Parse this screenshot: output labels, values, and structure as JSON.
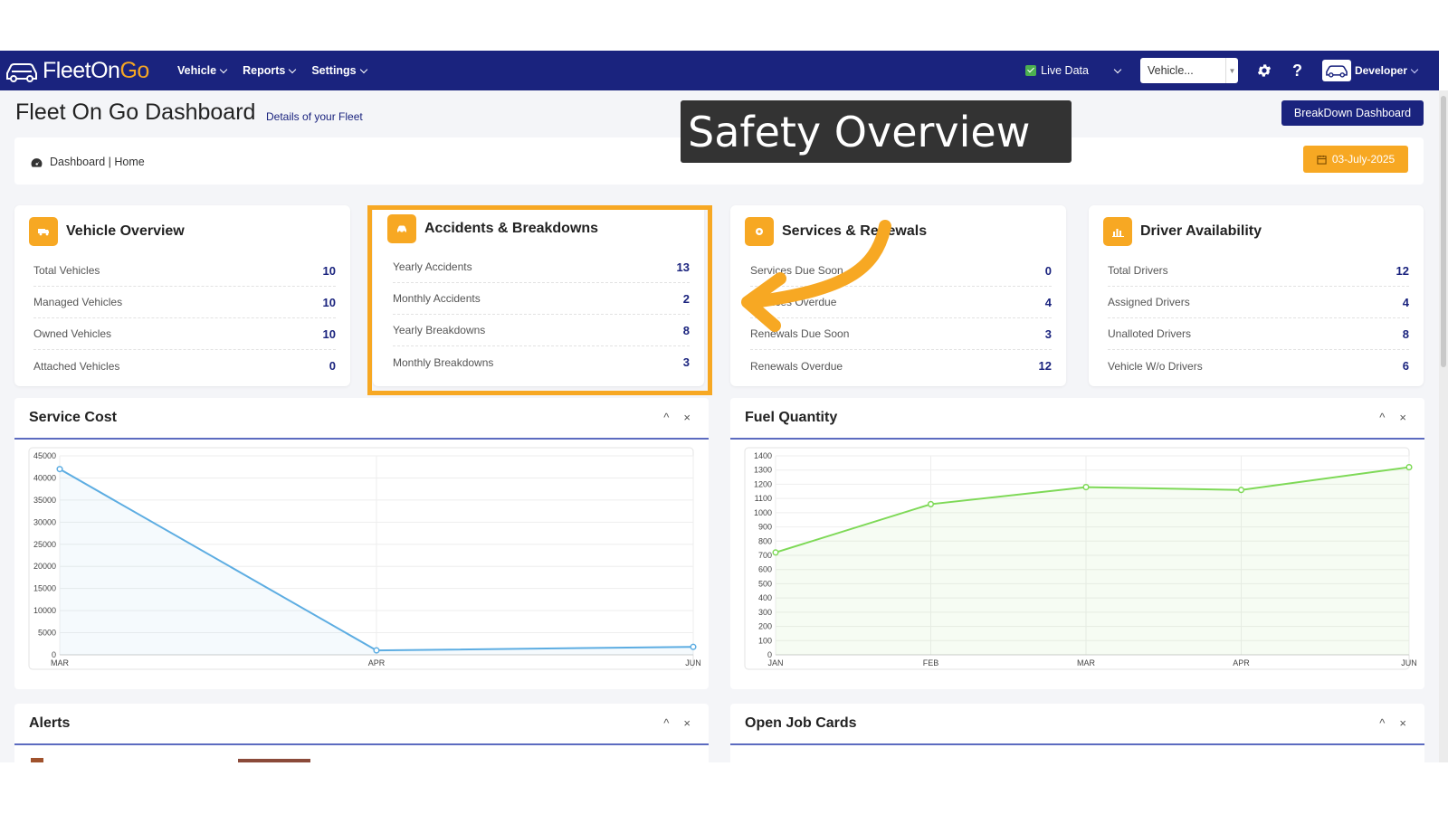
{
  "overlay": {
    "label": "Safety Overview"
  },
  "nav": {
    "logo_part1": "FleetOn",
    "logo_part2": "Go",
    "menu": [
      {
        "label": "Vehicle"
      },
      {
        "label": "Reports"
      },
      {
        "label": "Settings"
      }
    ],
    "live_data_label": "Live Data",
    "vehicle_select_value": "Vehicle...",
    "user_label": "Developer",
    "help_label": "?"
  },
  "header": {
    "title": "Fleet On Go Dashboard",
    "subtitle": "Details of your Fleet",
    "breakdown_button": "BreakDown Dashboard",
    "breadcrumb": "Dashboard | Home",
    "date": "03-July-2025"
  },
  "cards": {
    "vehicle": {
      "title": "Vehicle Overview",
      "rows": [
        {
          "label": "Total Vehicles",
          "value": "10"
        },
        {
          "label": "Managed Vehicles",
          "value": "10"
        },
        {
          "label": "Owned Vehicles",
          "value": "10"
        },
        {
          "label": "Attached Vehicles",
          "value": "0"
        }
      ]
    },
    "accidents": {
      "title": "Accidents & Breakdowns",
      "rows": [
        {
          "label": "Yearly Accidents",
          "value": "13"
        },
        {
          "label": "Monthly Accidents",
          "value": "2"
        },
        {
          "label": "Yearly Breakdowns",
          "value": "8"
        },
        {
          "label": "Monthly Breakdowns",
          "value": "3"
        }
      ]
    },
    "services": {
      "title": "Services & Renewals",
      "rows": [
        {
          "label": "Services Due Soon",
          "value": "0"
        },
        {
          "label": "Services Overdue",
          "value": "4"
        },
        {
          "label": "Renewals Due Soon",
          "value": "3"
        },
        {
          "label": "Renewals Overdue",
          "value": "12"
        }
      ]
    },
    "drivers": {
      "title": "Driver Availability",
      "rows": [
        {
          "label": "Total Drivers",
          "value": "12"
        },
        {
          "label": "Assigned Drivers",
          "value": "4"
        },
        {
          "label": "Unalloted Drivers",
          "value": "8"
        },
        {
          "label": "Vehicle W/o Drivers",
          "value": "6"
        }
      ]
    }
  },
  "panels": {
    "service_cost": {
      "title": "Service Cost"
    },
    "fuel_quantity": {
      "title": "Fuel Quantity"
    },
    "alerts": {
      "title": "Alerts"
    },
    "open_job_cards": {
      "title": "Open Job Cards"
    },
    "collapse_glyph": "^",
    "close_glyph": "×"
  },
  "colors": {
    "nav_bg": "#1a237e",
    "accent": "#f7a823",
    "service_line": "#5dade2",
    "fuel_line": "#7ed957"
  },
  "icons": [
    "car-logo-icon",
    "gear-icon",
    "help-icon",
    "dashboard-icon",
    "calendar-icon",
    "truck-icon",
    "car-crash-icon",
    "wrench-icon",
    "chart-icon",
    "collapse-icon",
    "close-icon"
  ],
  "chart_data": [
    {
      "type": "area",
      "title": "Service Cost",
      "categories": [
        "MAR",
        "APR",
        "JUN"
      ],
      "series": [
        {
          "values": [
            42000,
            1000,
            1800
          ]
        }
      ],
      "yticks": [
        "0",
        "5000",
        "10000",
        "15000",
        "20000",
        "25000",
        "30000",
        "35000",
        "40000",
        "45000"
      ],
      "ylim": [
        0,
        45000
      ],
      "grid": true,
      "color": "#5dade2"
    },
    {
      "type": "area",
      "title": "Fuel Quantity",
      "categories": [
        "JAN",
        "FEB",
        "MAR",
        "APR",
        "JUN"
      ],
      "series": [
        {
          "values": [
            720,
            1060,
            1180,
            1160,
            1320
          ]
        }
      ],
      "yticks": [
        "0",
        "100",
        "200",
        "300",
        "400",
        "500",
        "600",
        "700",
        "800",
        "900",
        "1000",
        "1100",
        "1200",
        "1300",
        "1400"
      ],
      "ylim": [
        0,
        1400
      ],
      "grid": true,
      "color": "#7ed957"
    }
  ]
}
